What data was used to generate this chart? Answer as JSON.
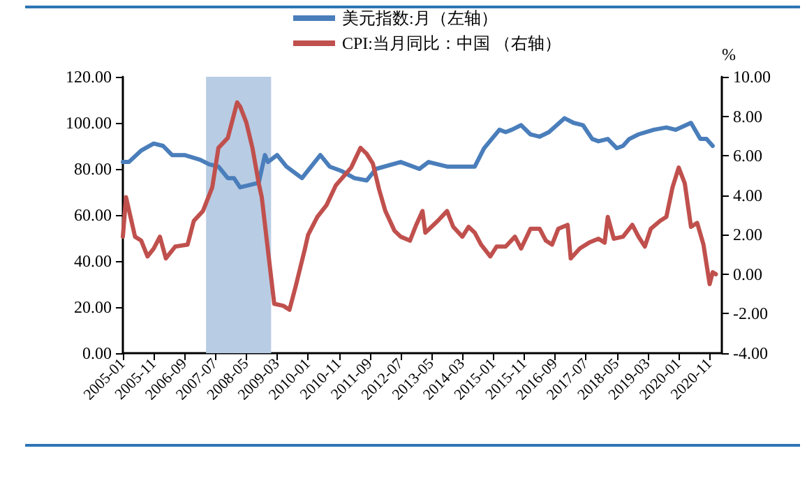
{
  "chart_data": {
    "type": "line",
    "y2label": "%",
    "legend": "top",
    "grid": false,
    "marker": "none",
    "line_style": "solid",
    "xlim": [
      "2005-01",
      "2021-03"
    ],
    "xticks": [
      "2005-01",
      "2005-11",
      "2006-09",
      "2007-07",
      "2008-05",
      "2009-03",
      "2010-01",
      "2010-11",
      "2011-09",
      "2012-07",
      "2013-05",
      "2014-03",
      "2015-01",
      "2015-11",
      "2016-09",
      "2017-07",
      "2018-05",
      "2019-03",
      "2020-01",
      "2020-11"
    ],
    "ylim": [
      0,
      120
    ],
    "yticks": [
      {
        "value": 0,
        "label": "0.00"
      },
      {
        "value": 20,
        "label": "20.00"
      },
      {
        "value": 40,
        "label": "40.00"
      },
      {
        "value": 60,
        "label": "60.00"
      },
      {
        "value": 80,
        "label": "80.00"
      },
      {
        "value": 100,
        "label": "100.00"
      },
      {
        "value": 120,
        "label": "120.00"
      }
    ],
    "y2lim": [
      -4,
      10
    ],
    "y2ticks": [
      {
        "value": -4,
        "label": "-4.00"
      },
      {
        "value": -2,
        "label": "-2.00"
      },
      {
        "value": 0,
        "label": "0.00"
      },
      {
        "value": 2,
        "label": "2.00"
      },
      {
        "value": 4,
        "label": "4.00"
      },
      {
        "value": 6,
        "label": "6.00"
      },
      {
        "value": 8,
        "label": "8.00"
      },
      {
        "value": 10,
        "label": "10.00"
      }
    ],
    "bands": [
      {
        "axis": "x",
        "from": "2007-04",
        "to": "2009-01",
        "color": "#b8cce4"
      }
    ],
    "series": [
      {
        "name": "美元指数:月（左轴）",
        "color": "#4a7ebb",
        "x": [
          "2005-01",
          "2005-03",
          "2005-07",
          "2005-11",
          "2006-02",
          "2006-05",
          "2006-09",
          "2007-02",
          "2007-05",
          "2007-08",
          "2007-11",
          "2008-01",
          "2008-03",
          "2008-09",
          "2008-11",
          "2008-12",
          "2009-03",
          "2009-06",
          "2009-11",
          "2010-05",
          "2010-08",
          "2010-12",
          "2011-04",
          "2011-08",
          "2011-11",
          "2012-07",
          "2013-01",
          "2013-04",
          "2013-10",
          "2014-03",
          "2014-07",
          "2014-10",
          "2015-03",
          "2015-05",
          "2015-07",
          "2015-10",
          "2016-01",
          "2016-04",
          "2016-07",
          "2016-12",
          "2017-03",
          "2017-06",
          "2017-09",
          "2017-11",
          "2018-02",
          "2018-05",
          "2018-07",
          "2018-09",
          "2018-12",
          "2019-05",
          "2019-09",
          "2019-12",
          "2020-05",
          "2020-08",
          "2020-10",
          "2020-12"
        ],
        "values": [
          83,
          83,
          88,
          91,
          90,
          86,
          86,
          84,
          82,
          81,
          76,
          76,
          72,
          74,
          86,
          83,
          86,
          81,
          76,
          86,
          81,
          79,
          76,
          75,
          80,
          83,
          80,
          83,
          81,
          81,
          81,
          89,
          97,
          96,
          97,
          99,
          95,
          94,
          96,
          102,
          100,
          99,
          93,
          92,
          93,
          89,
          90,
          93,
          95,
          97,
          98,
          97,
          100,
          93,
          93,
          90
        ]
      },
      {
        "name": "CPI:当月同比：中国 （右轴）",
        "color": "#c0504d",
        "axis": "y2",
        "x": [
          "2005-01",
          "2005-02",
          "2005-05",
          "2005-07",
          "2005-09",
          "2005-11",
          "2006-01",
          "2006-03",
          "2006-06",
          "2006-10",
          "2006-12",
          "2007-03",
          "2007-06",
          "2007-08",
          "2007-11",
          "2008-02",
          "2008-03",
          "2008-05",
          "2008-07",
          "2008-09",
          "2008-10",
          "2008-12",
          "2009-02",
          "2009-05",
          "2009-07",
          "2009-09",
          "2009-12",
          "2010-01",
          "2010-04",
          "2010-07",
          "2010-10",
          "2011-03",
          "2011-06",
          "2011-08",
          "2011-10",
          "2011-12",
          "2012-02",
          "2012-05",
          "2012-07",
          "2012-10",
          "2012-12",
          "2013-02",
          "2013-03",
          "2013-07",
          "2013-10",
          "2013-12",
          "2014-03",
          "2014-05",
          "2014-07",
          "2014-09",
          "2014-12",
          "2015-02",
          "2015-05",
          "2015-08",
          "2015-10",
          "2016-01",
          "2016-04",
          "2016-06",
          "2016-08",
          "2016-10",
          "2017-01",
          "2017-02",
          "2017-05",
          "2017-08",
          "2017-11",
          "2018-01",
          "2018-02",
          "2018-04",
          "2018-07",
          "2018-10",
          "2018-12",
          "2019-02",
          "2019-04",
          "2019-07",
          "2019-09",
          "2019-11",
          "2020-01",
          "2020-03",
          "2020-05",
          "2020-07",
          "2020-09",
          "2020-11",
          "2020-12",
          "2021-01"
        ],
        "values": [
          1.9,
          3.9,
          1.9,
          1.7,
          0.9,
          1.3,
          1.9,
          0.8,
          1.4,
          1.5,
          2.7,
          3.2,
          4.4,
          6.4,
          6.9,
          8.7,
          8.5,
          7.7,
          6.4,
          4.6,
          3.9,
          1.2,
          -1.5,
          -1.6,
          -1.8,
          -0.6,
          1.3,
          2.0,
          2.9,
          3.5,
          4.5,
          5.4,
          6.4,
          6.1,
          5.6,
          4.3,
          3.2,
          2.2,
          1.9,
          1.7,
          2.5,
          3.2,
          2.1,
          2.7,
          3.2,
          2.4,
          1.9,
          2.4,
          2.1,
          1.5,
          0.9,
          1.4,
          1.4,
          1.9,
          1.3,
          2.3,
          2.3,
          1.7,
          1.5,
          2.3,
          2.5,
          0.8,
          1.3,
          1.6,
          1.8,
          1.6,
          2.9,
          1.8,
          1.9,
          2.5,
          1.9,
          1.4,
          2.3,
          2.7,
          2.9,
          4.4,
          5.4,
          4.6,
          2.4,
          2.6,
          1.5,
          -0.5,
          0.1,
          0
        ]
      }
    ]
  }
}
